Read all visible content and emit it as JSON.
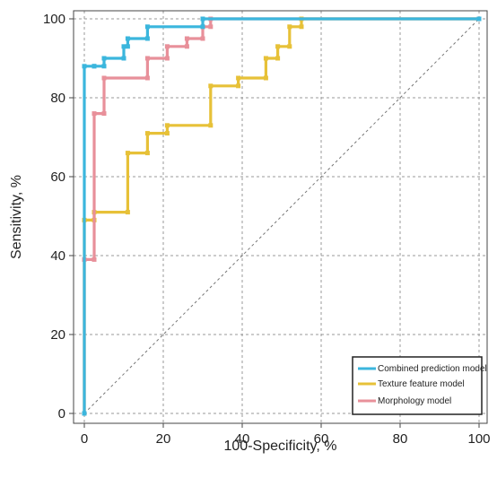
{
  "chart_data": {
    "type": "line",
    "title": "",
    "xlabel": "100-Specificity, %",
    "ylabel": "Sensitivity, %",
    "xlim": [
      0,
      100
    ],
    "ylim": [
      0,
      100
    ],
    "x_ticks": [
      "0",
      "20",
      "40",
      "60",
      "80",
      "100"
    ],
    "y_ticks": [
      "0",
      "20",
      "40",
      "60",
      "80",
      "100"
    ],
    "grid": true,
    "legend_position": "bottom-right",
    "reference_line": {
      "x": [
        0,
        100
      ],
      "y": [
        0,
        100
      ],
      "style": "dashed"
    },
    "series": [
      {
        "name": "Combined prediction model",
        "color": "#3bb6dd",
        "x": [
          0,
          0,
          2.5,
          2.5,
          5,
          5,
          10,
          10,
          11,
          11,
          16,
          16,
          30,
          30,
          100
        ],
        "y": [
          0,
          88,
          88,
          88,
          88,
          90,
          90,
          93,
          93,
          95,
          95,
          98,
          98,
          100,
          100
        ]
      },
      {
        "name": "Texture feature model",
        "color": "#e7c138",
        "x": [
          0,
          0,
          2.5,
          2.5,
          11,
          11,
          16,
          16,
          21,
          21,
          32,
          32,
          39,
          39,
          46,
          46,
          49,
          49,
          52,
          52,
          55,
          55,
          100
        ],
        "y": [
          0,
          49,
          49,
          51,
          51,
          66,
          66,
          71,
          71,
          73,
          73,
          83,
          83,
          85,
          85,
          90,
          90,
          93,
          93,
          98,
          98,
          100,
          100
        ]
      },
      {
        "name": "Morphology model",
        "color": "#e8909a",
        "x": [
          0,
          0,
          2.5,
          2.5,
          5,
          5,
          16,
          16,
          21,
          21,
          26,
          26,
          30,
          30,
          32,
          32,
          100
        ],
        "y": [
          0,
          39,
          39,
          76,
          76,
          85,
          85,
          90,
          90,
          93,
          93,
          95,
          95,
          98,
          98,
          100,
          100
        ]
      }
    ]
  }
}
